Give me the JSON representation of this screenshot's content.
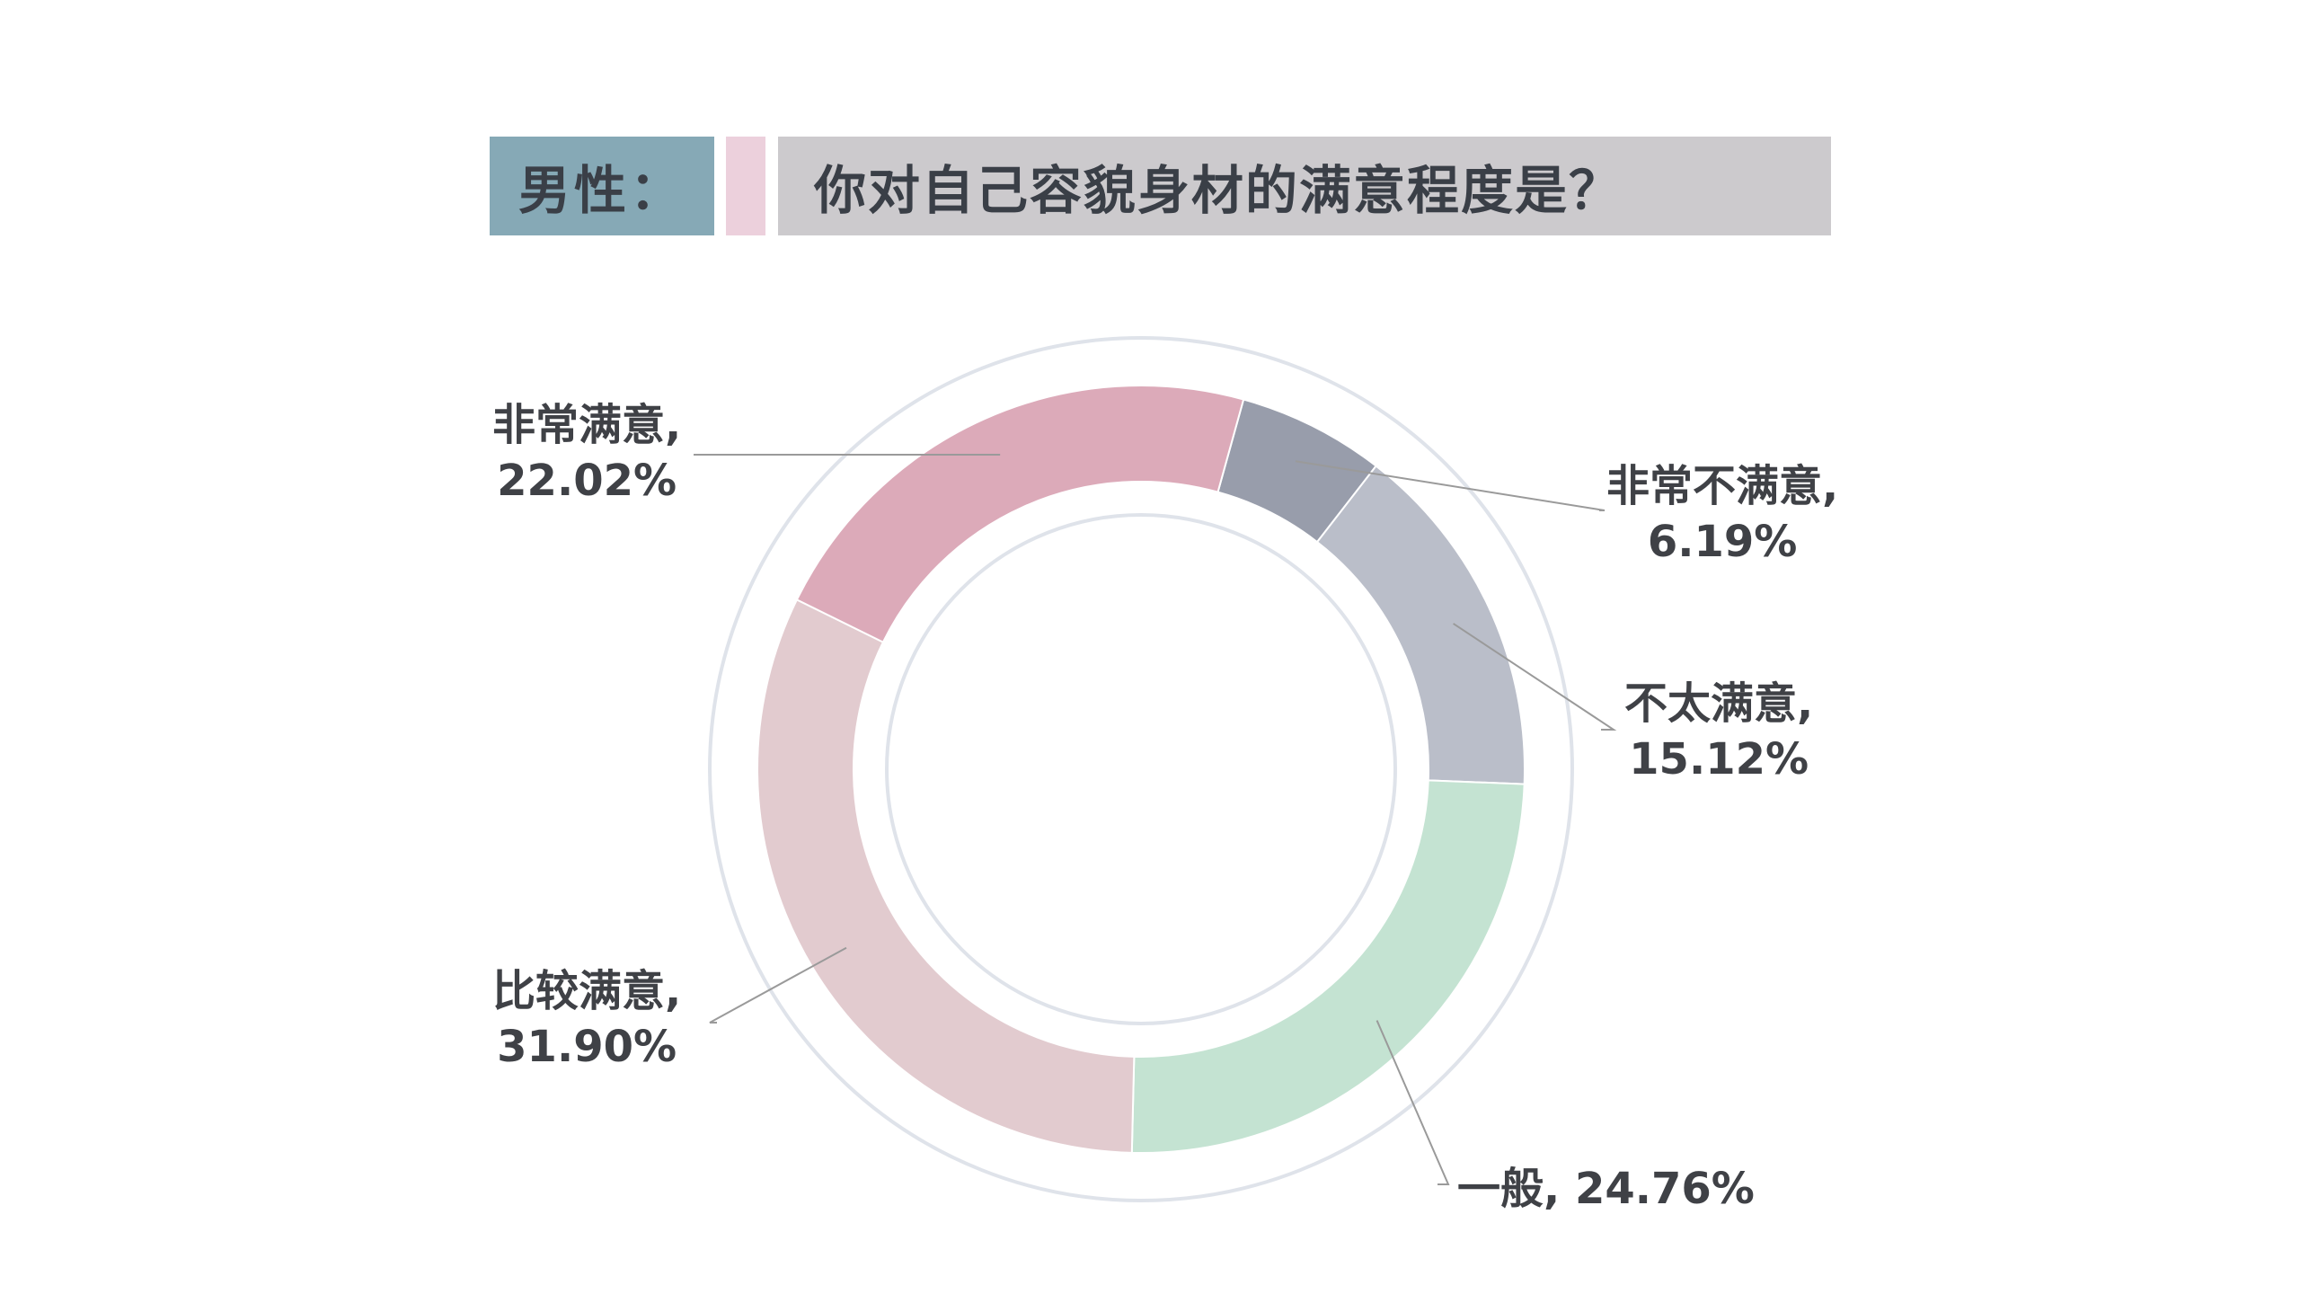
{
  "header": {
    "gender_label": "男性：",
    "question": "你对自己容貌身材的满意程度是？"
  },
  "colors": {
    "gender_box": "#86a9b6",
    "accent_box": "#ecd0dc",
    "question_box": "#cccacd",
    "ring_outline": "#dfe3ea"
  },
  "chart_data": {
    "type": "pie",
    "style": "donut",
    "title": "你对自己容貌身材的满意程度是？",
    "slices": [
      {
        "label": "非常不满意",
        "value": 6.19,
        "display": "6.19%",
        "color": "#989dab"
      },
      {
        "label": "不太满意",
        "value": 15.12,
        "display": "15.12%",
        "color": "#babec9"
      },
      {
        "label": "一般",
        "value": 24.76,
        "display": "24.76%",
        "color": "#c4e3d2"
      },
      {
        "label": "比较满意",
        "value": 31.9,
        "display": "31.90%",
        "color": "#e2cbcf"
      },
      {
        "label": "非常满意",
        "value": 22.02,
        "display": "22.02%",
        "color": "#dcaab9"
      }
    ]
  }
}
